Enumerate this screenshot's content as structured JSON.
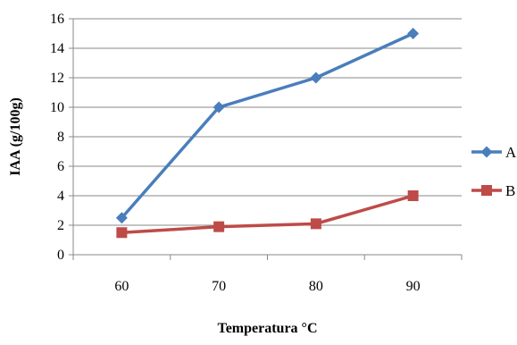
{
  "chart_data": {
    "type": "line",
    "title": "",
    "xlabel": "Temperatura °C",
    "ylabel": "IAA (g/100g)",
    "categories": [
      "60",
      "70",
      "80",
      "90"
    ],
    "ylim": [
      0,
      16
    ],
    "yticks": [
      "0",
      "2",
      "4",
      "6",
      "8",
      "10",
      "12",
      "14",
      "16"
    ],
    "grid": "horizontal",
    "legend_position": "right",
    "series": [
      {
        "name": "A",
        "values": [
          2.5,
          10,
          12,
          15
        ],
        "color": "#4a7ebb",
        "marker": "diamond"
      },
      {
        "name": "B",
        "values": [
          1.5,
          1.9,
          2.1,
          4.0
        ],
        "color": "#be4b48",
        "marker": "square"
      }
    ]
  }
}
